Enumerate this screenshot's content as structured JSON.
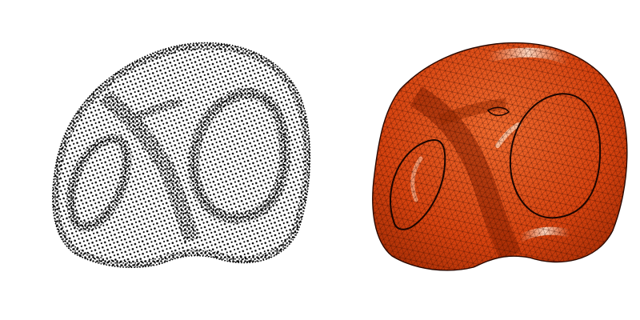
{
  "figure": {
    "background": "#ffffff",
    "panels": [
      {
        "name": "point-cloud",
        "point_color": "#000000"
      },
      {
        "name": "triangle-mesh",
        "surface_color": "#d8430f",
        "shadow_color": "#7a1a00",
        "highlight_color": "#ffd2b4",
        "edge_color": "#3a0c00"
      }
    ]
  }
}
